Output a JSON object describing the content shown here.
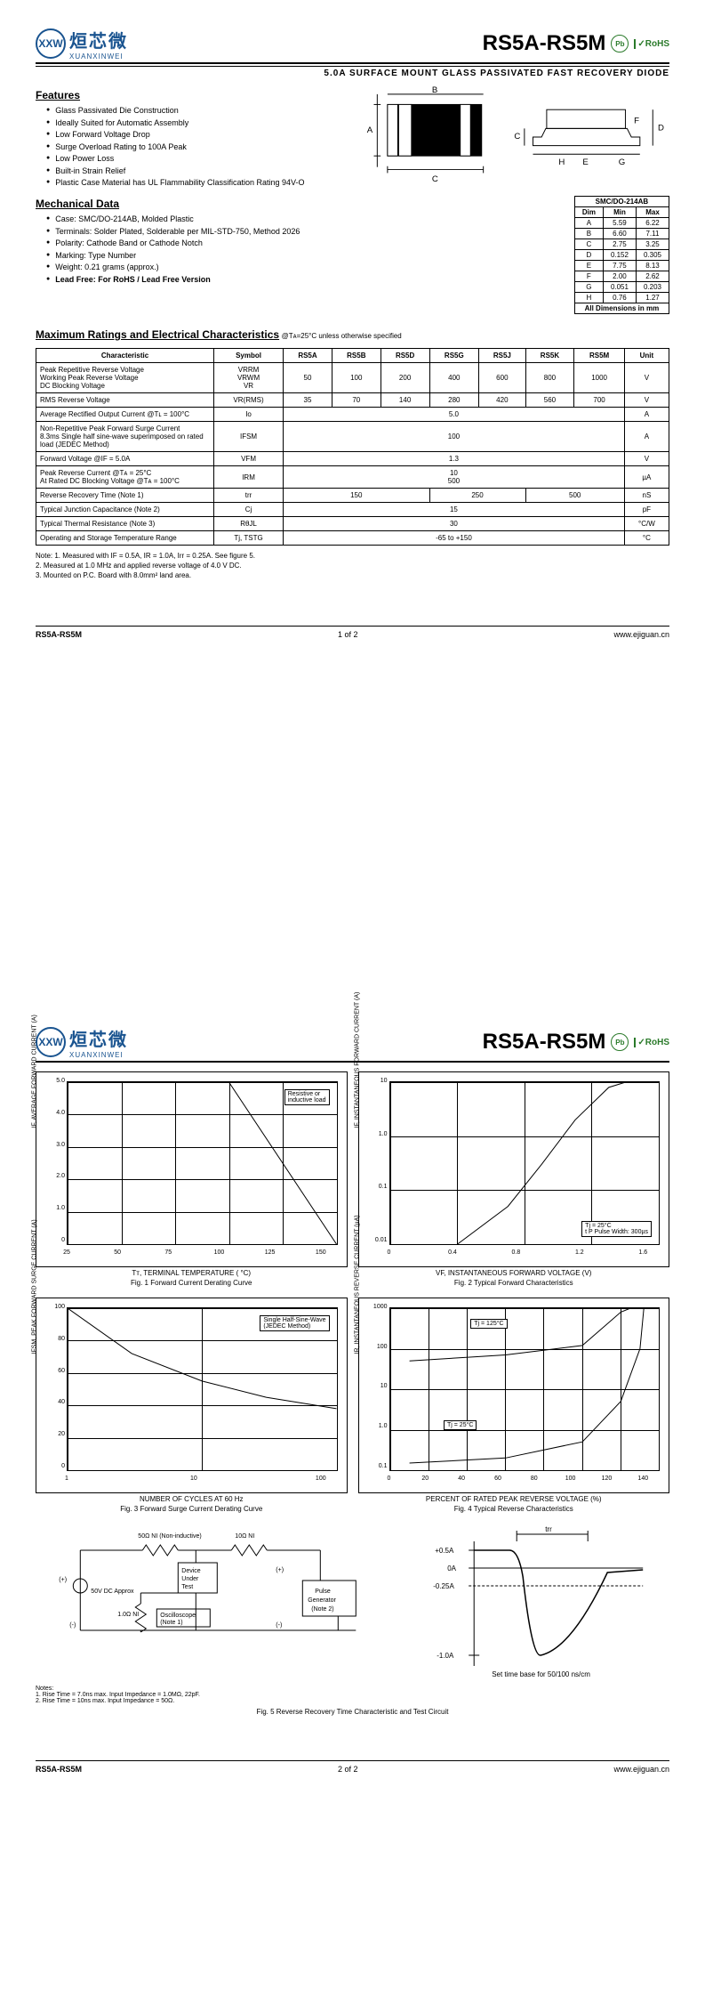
{
  "header": {
    "logo_chinese": "烜芯微",
    "logo_sub": "XUANXINWEI",
    "logo_mark": "XXW",
    "part_title": "RS5A-RS5M",
    "pb_badge": "Pb",
    "rohs": "RoHS",
    "subtitle": "5.0A SURFACE MOUNT GLASS PASSIVATED FAST RECOVERY DIODE"
  },
  "features": {
    "title": "Features",
    "items": [
      "Glass Passivated Die Construction",
      "Ideally Suited for Automatic Assembly",
      "Low Forward Voltage Drop",
      "Surge Overload Rating to 100A Peak",
      "Low Power Loss",
      "Built-in Strain Relief",
      "Plastic Case Material has UL Flammability Classification Rating 94V-O"
    ]
  },
  "mech": {
    "title": "Mechanical Data",
    "items": [
      "Case: SMC/DO-214AB, Molded Plastic",
      "Terminals: Solder Plated, Solderable per MIL-STD-750, Method 2026",
      "Polarity: Cathode Band or Cathode Notch",
      "Marking: Type Number",
      "Weight: 0.21 grams (approx.)",
      "Lead Free: For RoHS / Lead Free Version"
    ]
  },
  "dim_table": {
    "header": "SMC/DO-214AB",
    "cols": [
      "Dim",
      "Min",
      "Max"
    ],
    "rows": [
      [
        "A",
        "5.59",
        "6.22"
      ],
      [
        "B",
        "6.60",
        "7.11"
      ],
      [
        "C",
        "2.75",
        "3.25"
      ],
      [
        "D",
        "0.152",
        "0.305"
      ],
      [
        "E",
        "7.75",
        "8.13"
      ],
      [
        "F",
        "2.00",
        "2.62"
      ],
      [
        "G",
        "0.051",
        "0.203"
      ],
      [
        "H",
        "0.76",
        "1.27"
      ]
    ],
    "footer": "All Dimensions in mm"
  },
  "ratings": {
    "title": "Maximum Ratings and Electrical Characteristics",
    "cond": " @Tᴀ=25°C unless otherwise specified",
    "header": [
      "Characteristic",
      "Symbol",
      "RS5A",
      "RS5B",
      "RS5D",
      "RS5G",
      "RS5J",
      "RS5K",
      "RS5M",
      "Unit"
    ],
    "rows": [
      {
        "char": "Peak Repetitive Reverse Voltage\nWorking Peak Reverse Voltage\nDC Blocking Voltage",
        "sym": "VRRM\nVRWM\nVR",
        "vals": [
          "50",
          "100",
          "200",
          "400",
          "600",
          "800",
          "1000"
        ],
        "unit": "V"
      },
      {
        "char": "RMS Reverse Voltage",
        "sym": "VR(RMS)",
        "vals": [
          "35",
          "70",
          "140",
          "280",
          "420",
          "560",
          "700"
        ],
        "unit": "V"
      },
      {
        "char": "Average Rectified Output Current      @Tʟ = 100°C",
        "sym": "Io",
        "span": "5.0",
        "unit": "A"
      },
      {
        "char": "Non-Repetitive Peak Forward Surge Current\n8.3ms Single half sine-wave superimposed on rated load (JEDEC Method)",
        "sym": "IFSM",
        "span": "100",
        "unit": "A"
      },
      {
        "char": "Forward Voltage                @IF = 5.0A",
        "sym": "VFM",
        "span": "1.3",
        "unit": "V"
      },
      {
        "char": "Peak Reverse Current           @Tᴀ = 25°C\nAt Rated DC Blocking Voltage   @Tᴀ = 100°C",
        "sym": "IRM",
        "span": "10\n500",
        "unit": "µA"
      },
      {
        "char": "Reverse Recovery Time (Note 1)",
        "sym": "trr",
        "vals_grouped": [
          {
            "span": 3,
            "v": "150"
          },
          {
            "span": 2,
            "v": "250"
          },
          {
            "span": 2,
            "v": "500"
          }
        ],
        "unit": "nS"
      },
      {
        "char": "Typical Junction Capacitance (Note 2)",
        "sym": "Cj",
        "span": "15",
        "unit": "pF"
      },
      {
        "char": "Typical Thermal Resistance (Note 3)",
        "sym": "RθJL",
        "span": "30",
        "unit": "°C/W"
      },
      {
        "char": "Operating and Storage Temperature Range",
        "sym": "Tj, TSTG",
        "span": "-65 to +150",
        "unit": "°C"
      }
    ]
  },
  "notes": [
    "Note:  1. Measured with IF = 0.5A, IR = 1.0A, Irr = 0.25A. See figure 5.",
    "          2. Measured at 1.0 MHz and applied reverse voltage of 4.0 V DC.",
    "          3. Mounted on P.C. Board with 8.0mm² land area."
  ],
  "footer": {
    "part": "RS5A-RS5M",
    "page1": "1 of 2",
    "page2": "2 of 2",
    "url": "www.ejiguan.cn"
  },
  "figures": {
    "fig1": {
      "caption": "Fig. 1  Forward Current Derating Curve",
      "xlabel": "Tᴛ, TERMINAL TEMPERATURE ( °C)",
      "ylabel": "IF, AVERAGE FORWARD CURRENT (A)",
      "xlim": [
        25,
        150
      ],
      "xticks": [
        25,
        50,
        75,
        100,
        125,
        150
      ],
      "ylim": [
        0,
        5.0
      ],
      "yticks": [
        0,
        "1.0",
        "2.0",
        "3.0",
        "4.0",
        "5.0"
      ],
      "annot": "Resistive or\ninductive load",
      "line": [
        [
          25,
          5.0
        ],
        [
          100,
          5.0
        ],
        [
          150,
          0
        ]
      ],
      "line_color": "#000",
      "line_width": 2
    },
    "fig2": {
      "caption": "Fig. 2  Typical Forward Characteristics",
      "xlabel": "VF, INSTANTANEOUS FORWARD VOLTAGE (V)",
      "ylabel": "IF, INSTANTANEOUS FORWARD CURRENT (A)",
      "xlim": [
        0,
        1.6
      ],
      "xticks": [
        0,
        0.4,
        0.8,
        1.2,
        1.6
      ],
      "ylog": true,
      "ylim": [
        0.01,
        10
      ],
      "yticks": [
        0.01,
        0.1,
        "1.0",
        10
      ],
      "annot": "Tj = 25°C\nt P Pulse Width: 300µs",
      "line": [
        [
          0.4,
          0.01
        ],
        [
          0.7,
          0.05
        ],
        [
          0.9,
          0.3
        ],
        [
          1.1,
          2
        ],
        [
          1.3,
          8
        ],
        [
          1.4,
          10
        ]
      ],
      "line_color": "#000",
      "line_width": 2
    },
    "fig3": {
      "caption": "Fig. 3  Forward Surge Current Derating Curve",
      "xlabel": "NUMBER OF CYCLES AT 60 Hz",
      "ylabel": "IFSM, PEAK FORWARD SURGE CURRENT (A)",
      "xlog": true,
      "xlim": [
        1,
        100
      ],
      "xticks": [
        1,
        10,
        100
      ],
      "ylim": [
        0,
        100
      ],
      "yticks": [
        0,
        20,
        40,
        60,
        80,
        100
      ],
      "annot": "Single Half-Sine-Wave\n(JEDEC Method)",
      "line": [
        [
          1,
          100
        ],
        [
          3,
          72
        ],
        [
          10,
          55
        ],
        [
          30,
          45
        ],
        [
          100,
          38
        ]
      ],
      "line_color": "#000",
      "line_width": 2
    },
    "fig4": {
      "caption": "Fig. 4  Typical Reverse Characteristics",
      "xlabel": "PERCENT OF RATED PEAK REVERSE VOLTAGE (%)",
      "ylabel": "IR, INSTANTANEOUS REVERSE CURRENT (µA)",
      "xlim": [
        0,
        140
      ],
      "xticks": [
        0,
        20,
        40,
        60,
        80,
        100,
        120,
        140
      ],
      "ylog": true,
      "ylim": [
        0.1,
        1000
      ],
      "yticks": [
        0.1,
        "1.0",
        10,
        100,
        1000
      ],
      "annot1": "Tj = 125°C",
      "annot2": "Tj = 25°C",
      "lines": [
        {
          "pts": [
            [
              10,
              50
            ],
            [
              60,
              70
            ],
            [
              100,
              120
            ],
            [
              120,
              800
            ],
            [
              125,
              1000
            ]
          ],
          "color": "#000"
        },
        {
          "pts": [
            [
              10,
              0.15
            ],
            [
              60,
              0.2
            ],
            [
              100,
              0.5
            ],
            [
              120,
              5
            ],
            [
              130,
              100
            ],
            [
              132,
              1000
            ]
          ],
          "color": "#000"
        }
      ]
    },
    "fig5": {
      "caption": "Fig. 5  Reverse Recovery Time Characteristic and Test Circuit",
      "circuit_labels": {
        "r1": "50Ω NI (Non-inductive)",
        "r2": "10Ω NI",
        "dut": "Device\nUnder\nTest",
        "src": "50V DC\nApprox",
        "r3": "1.0Ω\nNI",
        "scope": "Oscilloscope\n(Note 1)",
        "pulse": "Pulse\nGenerator\n(Note 2)"
      },
      "notes": "Notes:\n1. Rise Time = 7.0ns max. Input Impedance = 1.0MΩ, 22pF.\n2. Rise Time = 10ns max. Input Impedance = 50Ω.",
      "wave_labels": {
        "top": "+0.5A",
        "zero": "0A",
        "q": "-0.25A",
        "bot": "-1.0A",
        "trr": "trr",
        "base": "Set time base for 50/100 ns/cm"
      }
    }
  },
  "colors": {
    "brand": "#1a5490",
    "green": "#2a7a2a",
    "black": "#000000"
  }
}
